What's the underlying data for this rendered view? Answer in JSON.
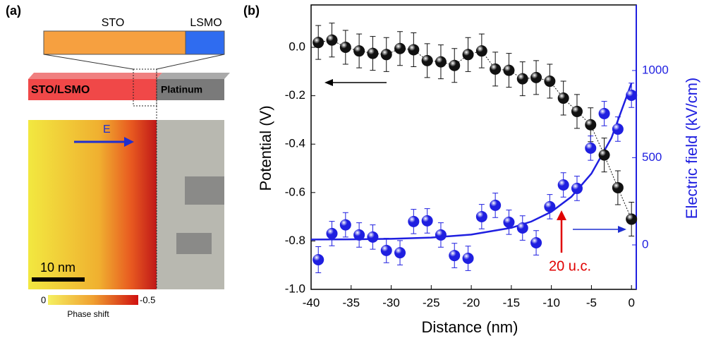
{
  "panel_a": {
    "label": "(a)",
    "bar_left": "STO",
    "bar_right": "LSMO",
    "slab_left": "STO/LSMO",
    "slab_right": "Platinum",
    "field": "E",
    "scale": "10 nm",
    "colorbar": {
      "min": 0,
      "max": -0.5,
      "label": "Phase shift"
    }
  },
  "chart_data": {
    "type": "scatter",
    "panel": "(b)",
    "x_label": "Distance (nm)",
    "y_label": "Potential (V)",
    "y2_label": "Electric field (kV/cm)",
    "xlim": [
      -40,
      0.6
    ],
    "xticks": [
      -40,
      -35,
      -30,
      -25,
      -20,
      -15,
      -10,
      -5,
      0
    ],
    "ylim": [
      -1.0,
      0.175
    ],
    "yticks": [
      {
        "value": 0,
        "label": "0.0"
      },
      -0.2,
      -0.4,
      -0.6,
      -0.8,
      {
        "value": -1,
        "label": "-1.0"
      }
    ],
    "y2lim": [
      -255,
      1376
    ],
    "y2ticks": [
      0,
      500,
      1000
    ],
    "y2color": "#1f1fe0",
    "x": [
      -39.1,
      -37.4,
      -35.7,
      -34,
      -32.3,
      -30.6,
      -28.9,
      -27.2,
      -25.5,
      -23.8,
      -22.1,
      -20.4,
      -18.7,
      -17,
      -15.3,
      -13.6,
      -11.9,
      -10.2,
      -8.5,
      -6.8,
      -5.1,
      -3.4,
      -1.7,
      0
    ],
    "series": [
      {
        "color": "#111111",
        "connect": true,
        "values": [
          0.02,
          0.03,
          0,
          -0.015,
          -0.025,
          -0.03,
          -0.005,
          -0.01,
          -0.055,
          -0.06,
          -0.075,
          -0.03,
          -0.015,
          -0.09,
          -0.095,
          -0.13,
          -0.125,
          -0.14,
          -0.21,
          -0.265,
          -0.32,
          -0.445,
          -0.58,
          -0.71
        ],
        "errors": [
          0.07,
          0.07,
          0.07,
          0.07,
          0.07,
          0.07,
          0.07,
          0.07,
          0.07,
          0.07,
          0.07,
          0.07,
          0.07,
          0.07,
          0.07,
          0.07,
          0.07,
          0.07,
          0.07,
          0.07,
          0.07,
          0.07,
          0.07,
          0.07
        ]
      },
      {
        "color": "#1f1fe0",
        "axis": "y2",
        "values": [
          -85,
          65,
          115,
          57,
          45,
          -32,
          -45,
          134,
          138,
          57,
          -61,
          -77,
          162,
          227,
          130,
          97,
          12,
          219,
          344,
          324,
          555,
          753,
          664,
          858
        ],
        "errors": [
          75,
          70,
          70,
          70,
          70,
          70,
          70,
          70,
          70,
          70,
          70,
          70,
          70,
          70,
          70,
          70,
          70,
          70,
          70,
          70,
          70,
          70,
          70,
          70
        ]
      }
    ],
    "fit": {
      "color": "#1f1fe0",
      "axis": "y2",
      "x": [
        -40,
        -35,
        -30,
        -25,
        -20,
        -15,
        -12.5,
        -10,
        -7.5,
        -5,
        -2.5,
        0
      ],
      "values": [
        31,
        32,
        35,
        42,
        59,
        98,
        134,
        190,
        276,
        409,
        613,
        927
      ]
    },
    "annotation": {
      "text": "20 u.c.",
      "color": "#e00000"
    }
  }
}
